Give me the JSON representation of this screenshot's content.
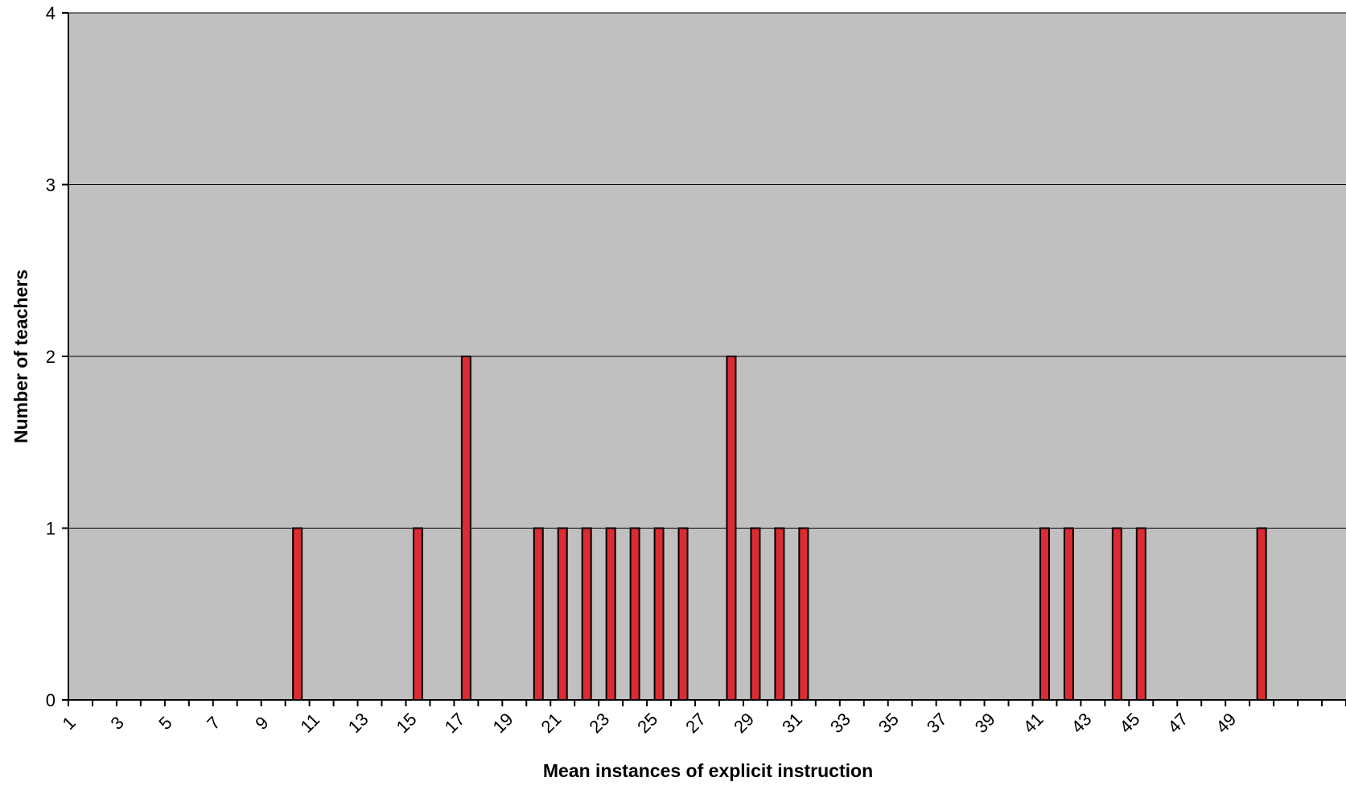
{
  "chart_data": {
    "type": "bar",
    "title": "",
    "xlabel": "Mean instances of explicit instruction",
    "ylabel": "Number of teachers",
    "categories": [
      "1",
      "2",
      "3",
      "4",
      "5",
      "6",
      "7",
      "8",
      "9",
      "10",
      "11",
      "12",
      "13",
      "14",
      "15",
      "16",
      "17",
      "18",
      "19",
      "20",
      "21",
      "22",
      "23",
      "24",
      "25",
      "26",
      "27",
      "28",
      "29",
      "30",
      "31",
      "32",
      "33",
      "34",
      "35",
      "36",
      "37",
      "38",
      "39",
      "40",
      "41",
      "42",
      "43",
      "44",
      "45",
      "46",
      "47",
      "48",
      "49",
      "50"
    ],
    "x_tick_labels": [
      "1",
      "3",
      "5",
      "7",
      "9",
      "11",
      "13",
      "15",
      "17",
      "19",
      "21",
      "23",
      "25",
      "27",
      "29",
      "31",
      "33",
      "35",
      "37",
      "39",
      "41",
      "43",
      "45",
      "47",
      "49"
    ],
    "values": [
      0,
      0,
      0,
      0,
      0,
      0,
      0,
      0,
      0,
      1,
      0,
      0,
      0,
      0,
      1,
      0,
      2,
      0,
      0,
      1,
      1,
      1,
      1,
      1,
      1,
      1,
      0,
      2,
      1,
      1,
      1,
      0,
      0,
      0,
      0,
      0,
      0,
      0,
      0,
      0,
      1,
      1,
      0,
      1,
      1,
      0,
      0,
      0,
      0,
      1
    ],
    "ylim": [
      0,
      4
    ],
    "y_ticks": [
      0,
      1,
      2,
      3,
      4
    ],
    "grid": true,
    "legend": "none",
    "colors": {
      "bar_fill": "#dc2b32",
      "bar_stroke": "#000000",
      "plot_background": "#c0c0c0",
      "gridline": "#000000"
    }
  }
}
